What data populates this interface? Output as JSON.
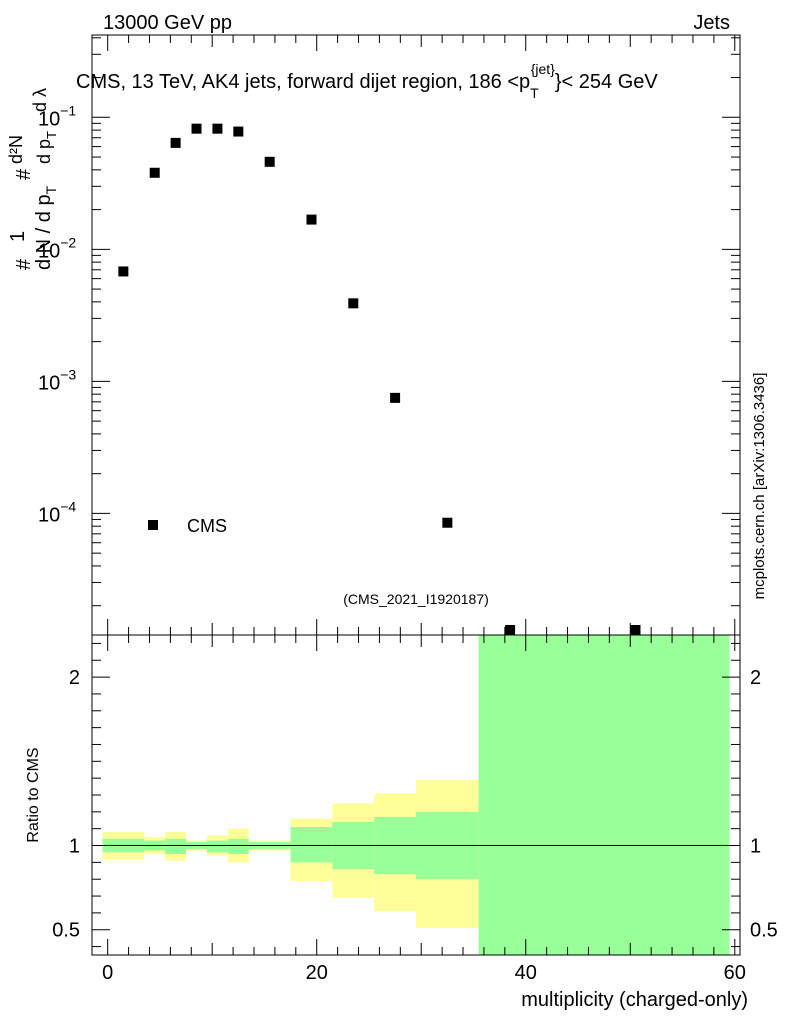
{
  "header": {
    "left": "13000 GeV pp",
    "right": "Jets"
  },
  "chart_data": [
    {
      "type": "scatter",
      "title": "CMS, 13 TeV, AK4 jets, forward dijet region, 186 <p_T^{jet}< 254 GeV",
      "title_parts": {
        "before": "CMS, 13 TeV, AK4 jets, forward dijet region, 186 <p",
        "sub": "T",
        "sup": "{jet}",
        "after": "}< 254 GeV"
      },
      "ylabel": "1/dN/dp_T # d^2N/dp_T dλ",
      "ylabel_parts": {
        "one": "1",
        "frac": "d N / d p",
        "sub": "T",
        "hash": "#",
        "num": "d²N",
        "den": "d p",
        "den_sub": "T",
        "dl": "d λ"
      },
      "yscale": "log",
      "ylim": [
        1.2e-05,
        0.42
      ],
      "xlim": [
        -1.5,
        60.5
      ],
      "ytick_labels": [
        {
          "value": 0.1,
          "base": "10",
          "exp": "−1"
        },
        {
          "value": 0.01,
          "base": "10",
          "exp": "−2"
        },
        {
          "value": 0.001,
          "base": "10",
          "exp": "−3"
        },
        {
          "value": 0.0001,
          "base": "10",
          "exp": "−4"
        }
      ],
      "legend": {
        "label": "CMS",
        "position": "lower-left"
      },
      "annotation": "(CMS_2021_I1920187)",
      "side_label": "mcplots.cern.ch [arXiv:1306.3436]",
      "series": [
        {
          "name": "CMS",
          "x": [
            1.5,
            4.5,
            6.5,
            8.5,
            10.5,
            12.5,
            15.5,
            19.5,
            23.5,
            27.5,
            32.5,
            38.5,
            50.5
          ],
          "y": [
            0.0068,
            0.038,
            0.064,
            0.082,
            0.082,
            0.078,
            0.046,
            0.0168,
            0.0039,
            0.00075,
            8.5e-05,
            1.19e-05,
            1.19e-05
          ]
        }
      ]
    },
    {
      "type": "area",
      "ylabel": "Ratio to CMS",
      "xlabel": "multiplicity (charged-only)",
      "xlim": [
        -1.5,
        60.5
      ],
      "ylim": [
        0.35,
        2.25
      ],
      "xtick_labels": [
        "0",
        "20",
        "40",
        "60"
      ],
      "ytick_labels": [
        "0.5",
        "1",
        "2"
      ],
      "reference_line": 1,
      "bins": [
        {
          "x0": -0.5,
          "x1": 3.5,
          "stat_lo": 0.96,
          "stat_hi": 1.04,
          "tot_lo": 0.92,
          "tot_hi": 1.08
        },
        {
          "x0": 3.5,
          "x1": 5.5,
          "stat_lo": 0.97,
          "stat_hi": 1.03,
          "tot_lo": 0.95,
          "tot_hi": 1.05
        },
        {
          "x0": 5.5,
          "x1": 7.5,
          "stat_lo": 0.95,
          "stat_hi": 1.04,
          "tot_lo": 0.91,
          "tot_hi": 1.08
        },
        {
          "x0": 7.5,
          "x1": 9.5,
          "stat_lo": 0.98,
          "stat_hi": 1.02,
          "tot_lo": 0.97,
          "tot_hi": 1.03
        },
        {
          "x0": 9.5,
          "x1": 11.5,
          "stat_lo": 0.96,
          "stat_hi": 1.03,
          "tot_lo": 0.94,
          "tot_hi": 1.06
        },
        {
          "x0": 11.5,
          "x1": 13.5,
          "stat_lo": 0.95,
          "stat_hi": 1.04,
          "tot_lo": 0.9,
          "tot_hi": 1.1
        },
        {
          "x0": 13.5,
          "x1": 17.5,
          "stat_lo": 0.98,
          "stat_hi": 1.02,
          "tot_lo": 0.97,
          "tot_hi": 1.03
        },
        {
          "x0": 17.5,
          "x1": 21.5,
          "stat_lo": 0.9,
          "stat_hi": 1.11,
          "tot_lo": 0.79,
          "tot_hi": 1.16
        },
        {
          "x0": 21.5,
          "x1": 25.5,
          "stat_lo": 0.86,
          "stat_hi": 1.14,
          "tot_lo": 0.69,
          "tot_hi": 1.25
        },
        {
          "x0": 25.5,
          "x1": 29.5,
          "stat_lo": 0.83,
          "stat_hi": 1.17,
          "tot_lo": 0.61,
          "tot_hi": 1.31
        },
        {
          "x0": 29.5,
          "x1": 35.5,
          "stat_lo": 0.8,
          "stat_hi": 1.2,
          "tot_lo": 0.51,
          "tot_hi": 1.39
        },
        {
          "x0": 35.5,
          "x1": 59.5,
          "stat_lo": 0.35,
          "stat_hi": 2.25,
          "tot_lo": 0.35,
          "tot_hi": 2.25
        }
      ]
    }
  ],
  "colors": {
    "stat_band": "#99ff99",
    "total_band": "#ffff99",
    "marker": "#000000",
    "annotation": "#999999"
  }
}
